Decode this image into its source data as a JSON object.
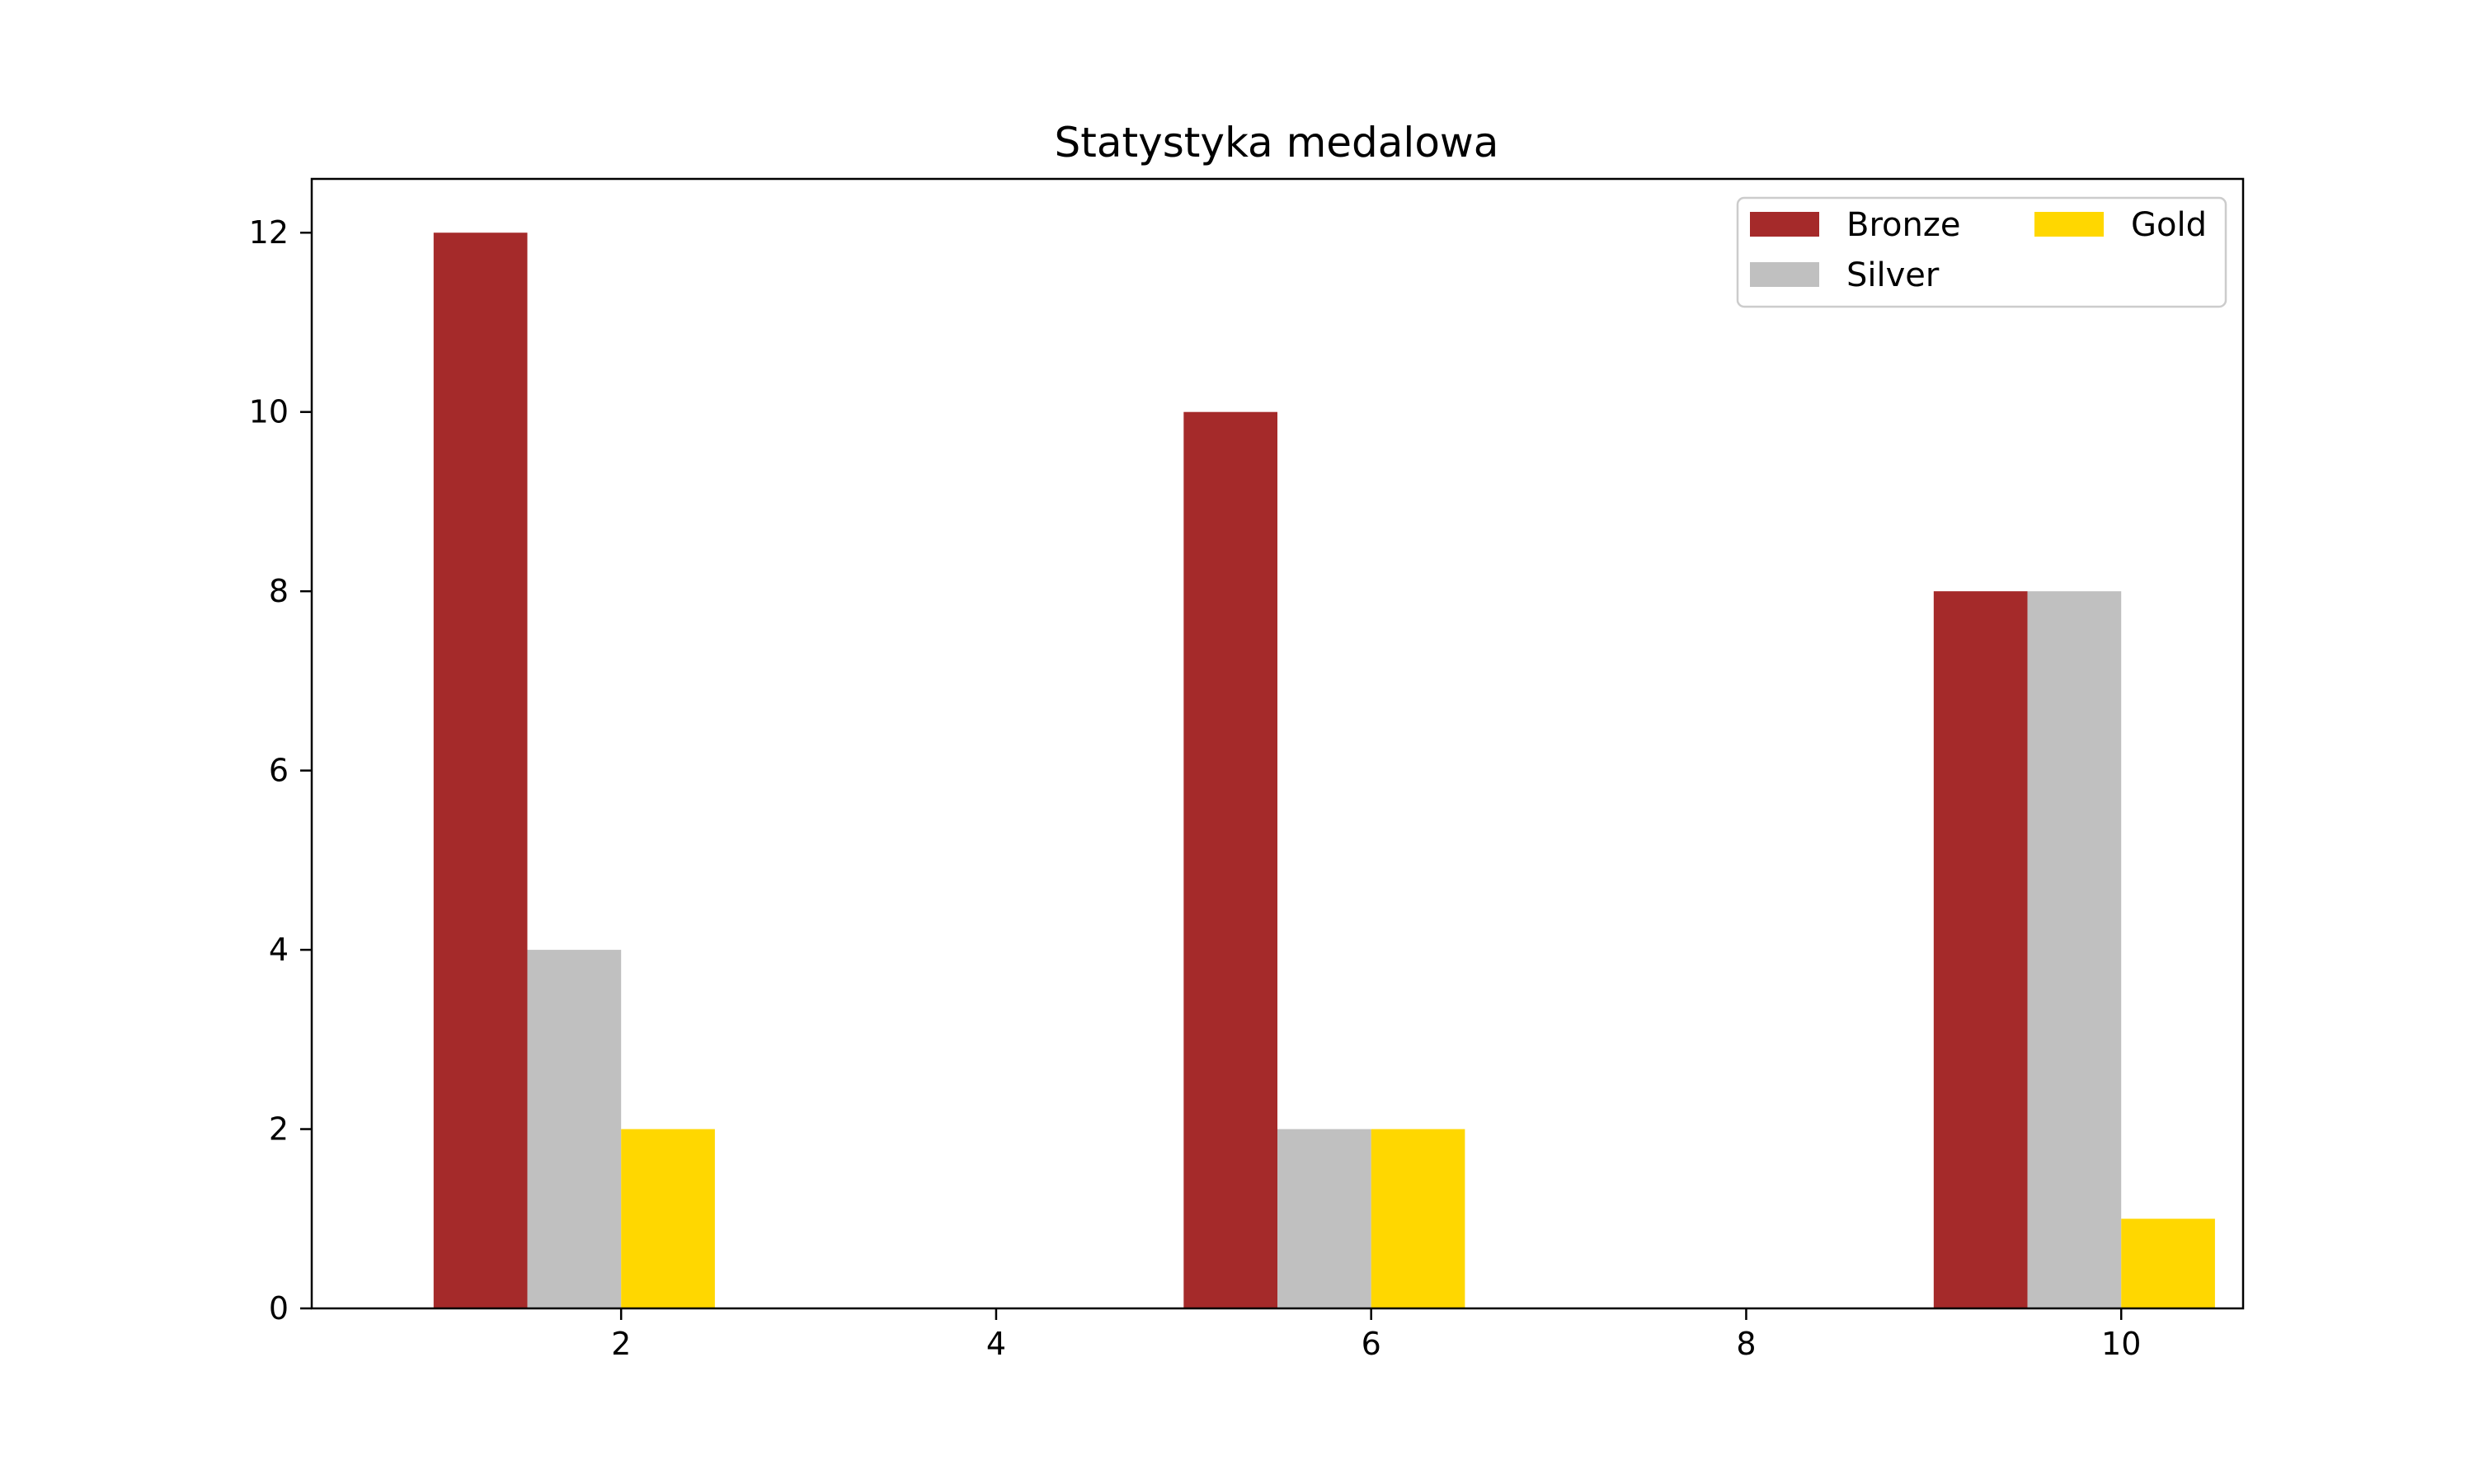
{
  "chart_data": {
    "type": "bar",
    "title": "Statystyka medalowa",
    "xlabel": "",
    "ylabel": "",
    "xlim": [
      0.35,
      10.65
    ],
    "ylim": [
      0,
      12.6
    ],
    "x_ticks": [
      2,
      4,
      6,
      8,
      10
    ],
    "y_ticks": [
      0,
      2,
      4,
      6,
      8,
      10,
      12
    ],
    "bar_width": 0.5,
    "grid": false,
    "legend": {
      "placement": "top-right",
      "columns": 2
    },
    "series": [
      {
        "name": "Bronze",
        "color": "#a52a2a",
        "x": [
          1.25,
          5.25,
          9.25
        ],
        "values": [
          12,
          10,
          8
        ]
      },
      {
        "name": "Silver",
        "color": "#c0c0c0",
        "x": [
          1.75,
          5.75,
          9.75
        ],
        "values": [
          4,
          2,
          8
        ]
      },
      {
        "name": "Gold",
        "color": "#ffd700",
        "x": [
          2.25,
          6.25,
          10.25
        ],
        "values": [
          2,
          2,
          1
        ]
      }
    ]
  }
}
